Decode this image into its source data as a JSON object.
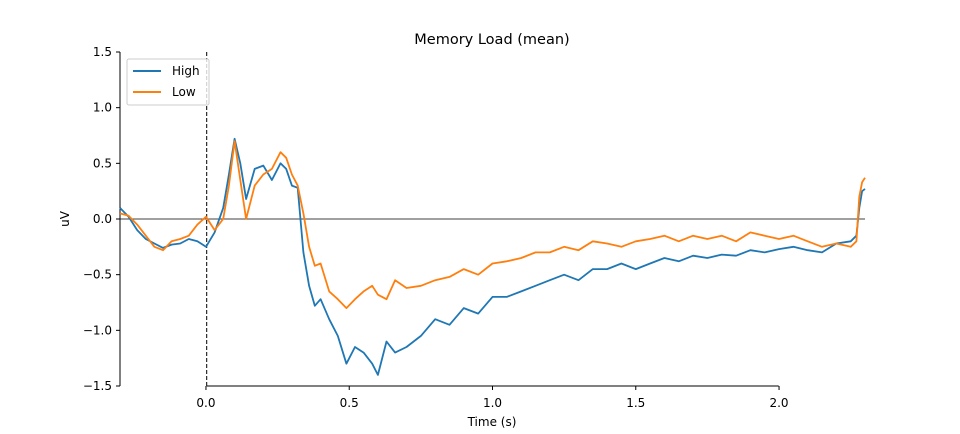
{
  "chart_data": {
    "type": "line",
    "title": "Memory Load (mean)",
    "xlabel": "Time (s)",
    "ylabel": "uV",
    "xlim": [
      -0.3,
      2.3
    ],
    "ylim": [
      -1.5,
      1.5
    ],
    "x_ticks": [
      0.0,
      0.5,
      1.0,
      1.5,
      2.0
    ],
    "x_tick_labels": [
      "0.0",
      "0.5",
      "1.0",
      "1.5",
      "2.0"
    ],
    "y_ticks": [
      -1.5,
      -1.0,
      -0.5,
      0.0,
      0.5,
      1.0,
      1.5
    ],
    "y_tick_labels": [
      "−1.5",
      "−1.0",
      "−0.5",
      "0.0",
      "0.5",
      "1.0",
      "1.5"
    ],
    "grid": false,
    "legend": "top-left",
    "reference_lines": {
      "horizontal_y": 0,
      "vertical_x": 0
    },
    "series": [
      {
        "name": "High",
        "color": "#1f77b4",
        "x": [
          -0.3,
          -0.27,
          -0.24,
          -0.21,
          -0.18,
          -0.15,
          -0.12,
          -0.09,
          -0.06,
          -0.03,
          0.0,
          0.03,
          0.06,
          0.08,
          0.1,
          0.12,
          0.14,
          0.17,
          0.2,
          0.23,
          0.26,
          0.28,
          0.3,
          0.32,
          0.34,
          0.36,
          0.38,
          0.4,
          0.43,
          0.46,
          0.49,
          0.52,
          0.55,
          0.58,
          0.6,
          0.63,
          0.66,
          0.7,
          0.75,
          0.8,
          0.85,
          0.9,
          0.95,
          1.0,
          1.05,
          1.1,
          1.15,
          1.2,
          1.25,
          1.3,
          1.35,
          1.4,
          1.45,
          1.5,
          1.55,
          1.6,
          1.65,
          1.7,
          1.75,
          1.8,
          1.85,
          1.9,
          1.95,
          2.0,
          2.05,
          2.1,
          2.15,
          2.2,
          2.25,
          2.27,
          2.28,
          2.29,
          2.3
        ],
        "y": [
          0.1,
          0.02,
          -0.1,
          -0.18,
          -0.22,
          -0.26,
          -0.23,
          -0.22,
          -0.18,
          -0.2,
          -0.25,
          -0.12,
          0.1,
          0.4,
          0.72,
          0.5,
          0.18,
          0.45,
          0.48,
          0.35,
          0.5,
          0.45,
          0.3,
          0.28,
          -0.3,
          -0.6,
          -0.78,
          -0.72,
          -0.9,
          -1.05,
          -1.3,
          -1.15,
          -1.2,
          -1.3,
          -1.4,
          -1.1,
          -1.2,
          -1.15,
          -1.05,
          -0.9,
          -0.95,
          -0.8,
          -0.85,
          -0.7,
          -0.7,
          -0.65,
          -0.6,
          -0.55,
          -0.5,
          -0.55,
          -0.45,
          -0.45,
          -0.4,
          -0.45,
          -0.4,
          -0.35,
          -0.38,
          -0.33,
          -0.35,
          -0.32,
          -0.33,
          -0.28,
          -0.3,
          -0.27,
          -0.25,
          -0.28,
          -0.3,
          -0.22,
          -0.2,
          -0.15,
          0.1,
          0.25,
          0.27
        ]
      },
      {
        "name": "Low",
        "color": "#ff7f0e",
        "x": [
          -0.3,
          -0.27,
          -0.24,
          -0.21,
          -0.18,
          -0.15,
          -0.12,
          -0.09,
          -0.06,
          -0.03,
          0.0,
          0.03,
          0.06,
          0.08,
          0.1,
          0.12,
          0.14,
          0.17,
          0.2,
          0.23,
          0.26,
          0.28,
          0.3,
          0.32,
          0.34,
          0.36,
          0.38,
          0.4,
          0.43,
          0.46,
          0.49,
          0.52,
          0.55,
          0.58,
          0.6,
          0.63,
          0.66,
          0.7,
          0.75,
          0.8,
          0.85,
          0.9,
          0.95,
          1.0,
          1.05,
          1.1,
          1.15,
          1.2,
          1.25,
          1.3,
          1.35,
          1.4,
          1.45,
          1.5,
          1.55,
          1.6,
          1.65,
          1.7,
          1.75,
          1.8,
          1.85,
          1.9,
          1.95,
          2.0,
          2.05,
          2.1,
          2.15,
          2.2,
          2.25,
          2.27,
          2.28,
          2.29,
          2.3
        ],
        "y": [
          0.05,
          0.03,
          -0.05,
          -0.15,
          -0.25,
          -0.28,
          -0.2,
          -0.18,
          -0.15,
          -0.05,
          0.02,
          -0.1,
          0.0,
          0.3,
          0.7,
          0.35,
          0.0,
          0.3,
          0.4,
          0.45,
          0.6,
          0.55,
          0.4,
          0.3,
          0.05,
          -0.25,
          -0.42,
          -0.4,
          -0.65,
          -0.72,
          -0.8,
          -0.72,
          -0.65,
          -0.6,
          -0.68,
          -0.72,
          -0.55,
          -0.62,
          -0.6,
          -0.55,
          -0.52,
          -0.45,
          -0.5,
          -0.4,
          -0.38,
          -0.35,
          -0.3,
          -0.3,
          -0.25,
          -0.28,
          -0.2,
          -0.22,
          -0.25,
          -0.2,
          -0.18,
          -0.15,
          -0.2,
          -0.15,
          -0.18,
          -0.15,
          -0.2,
          -0.12,
          -0.15,
          -0.18,
          -0.15,
          -0.2,
          -0.25,
          -0.22,
          -0.25,
          -0.2,
          0.2,
          0.33,
          0.37
        ]
      }
    ]
  }
}
